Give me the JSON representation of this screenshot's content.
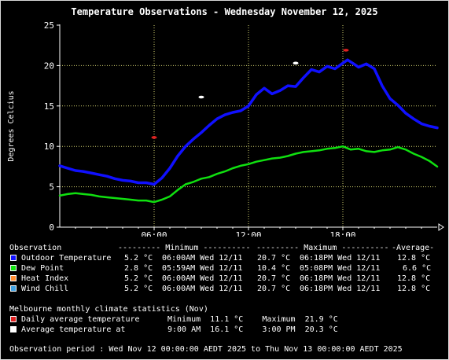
{
  "chart_data": {
    "type": "line",
    "title": "Temperature Observations - Wednesday November 12, 2025",
    "ylabel": "Degrees Celcius",
    "xlabel": "",
    "xlim_hours": [
      0,
      24
    ],
    "ylim": [
      0,
      25
    ],
    "yticks": [
      "0",
      "5",
      "10",
      "15",
      "20",
      "25"
    ],
    "xticks": [
      "06:00",
      "12:00",
      "18:00"
    ],
    "xtick_hours": [
      6,
      12,
      18
    ],
    "grid": true,
    "background": "#000000",
    "plot_background": "#000000",
    "grid_color": "#d0d070",
    "series": [
      {
        "name": "Outdoor Temperature",
        "color": "#1010ff",
        "x": [
          0,
          0.5,
          1,
          1.5,
          2,
          2.5,
          3,
          3.5,
          4,
          4.5,
          5,
          5.5,
          6,
          6.5,
          7,
          7.5,
          8,
          8.5,
          9,
          9.5,
          10,
          10.5,
          11,
          11.5,
          12,
          12.5,
          13,
          13.5,
          14,
          14.5,
          15,
          15.5,
          16,
          16.5,
          17,
          17.5,
          18,
          18.3,
          18.7,
          19,
          19.5,
          20,
          20.5,
          21,
          21.5,
          22,
          22.5,
          23,
          23.5,
          24
        ],
        "values": [
          7.6,
          7.3,
          7.0,
          6.9,
          6.7,
          6.5,
          6.3,
          6.0,
          5.8,
          5.7,
          5.5,
          5.5,
          5.3,
          6.1,
          7.3,
          8.8,
          10.0,
          10.9,
          11.7,
          12.6,
          13.4,
          13.9,
          14.2,
          14.4,
          15.0,
          16.4,
          17.2,
          16.5,
          16.9,
          17.5,
          17.4,
          18.5,
          19.5,
          19.2,
          19.9,
          19.6,
          20.3,
          20.7,
          20.2,
          19.8,
          20.2,
          19.6,
          17.5,
          15.9,
          15.1,
          14.1,
          13.4,
          12.8,
          12.5,
          12.3
        ]
      },
      {
        "name": "Dew Point",
        "color": "#10e010",
        "x": [
          0,
          0.5,
          1,
          1.5,
          2,
          2.5,
          3,
          3.5,
          4,
          4.5,
          5,
          5.5,
          6,
          6.5,
          7,
          7.5,
          8,
          8.5,
          9,
          9.5,
          10,
          10.5,
          11,
          11.5,
          12,
          12.5,
          13,
          13.5,
          14,
          14.5,
          15,
          15.5,
          16,
          16.5,
          17,
          17.5,
          18,
          18.5,
          19,
          19.5,
          20,
          20.5,
          21,
          21.5,
          22,
          22.5,
          23,
          23.5,
          24
        ],
        "values": [
          3.9,
          4.1,
          4.2,
          4.1,
          4.0,
          3.8,
          3.7,
          3.6,
          3.5,
          3.4,
          3.3,
          3.3,
          3.1,
          3.4,
          3.8,
          4.6,
          5.3,
          5.6,
          6.0,
          6.2,
          6.6,
          6.9,
          7.3,
          7.6,
          7.8,
          8.1,
          8.3,
          8.5,
          8.6,
          8.8,
          9.1,
          9.3,
          9.4,
          9.5,
          9.7,
          9.8,
          10.0,
          9.6,
          9.7,
          9.4,
          9.3,
          9.5,
          9.6,
          9.9,
          9.6,
          9.1,
          8.7,
          8.2,
          7.5
        ]
      }
    ],
    "climate_points": [
      {
        "name": "Daily average temperature minimum",
        "x": 6.0,
        "y": 11.1,
        "color": "#e02020"
      },
      {
        "name": "Daily average temperature maximum",
        "x": 18.2,
        "y": 21.9,
        "color": "#e02020"
      },
      {
        "name": "Average temperature at 9:00 AM",
        "x": 9.0,
        "y": 16.1,
        "color": "#ffffff"
      },
      {
        "name": "Average temperature at 3:00 PM",
        "x": 15.0,
        "y": 20.3,
        "color": "#ffffff"
      }
    ]
  },
  "legend": {
    "header": {
      "observation": "Observation",
      "minimum": "--------- Minimum ----------",
      "maximum": "--------- Maximum ----------",
      "average": "-Average-"
    },
    "rows": [
      {
        "label": "Outdoor Temperature",
        "color": "#1010ff",
        "min_val": "5.2 °C",
        "min_time": "06:00AM Wed 12/11",
        "max_val": "20.7 °C",
        "max_time": "06:18PM Wed 12/11",
        "avg": "12.8 °C"
      },
      {
        "label": "Dew Point",
        "color": "#10e010",
        "min_val": "2.8 °C",
        "min_time": "05:59AM Wed 12/11",
        "max_val": "10.4 °C",
        "max_time": "05:08PM Wed 12/11",
        "avg": "6.6 °C"
      },
      {
        "label": "Heat Index",
        "color": "#ff8c30",
        "min_val": "5.2 °C",
        "min_time": "06:00AM Wed 12/11",
        "max_val": "20.7 °C",
        "max_time": "06:18PM Wed 12/11",
        "avg": "12.8 °C"
      },
      {
        "label": "Wind Chill",
        "color": "#40a0e0",
        "min_val": "5.2 °C",
        "min_time": "06:00AM Wed 12/11",
        "max_val": "20.7 °C",
        "max_time": "06:18PM Wed 12/11",
        "avg": "12.8 °C"
      }
    ]
  },
  "climate": {
    "heading": "Melbourne monthly climate statistics (Nov)",
    "rows": [
      {
        "label": "Daily average temperature",
        "color": "#e02020",
        "text": "Minimum  11.1 °C    Maximum  21.9 °C"
      },
      {
        "label": "Average temperature at",
        "color": "#ffffff",
        "text": "9:00 AM  16.1 °C    3:00 PM  20.3 °C"
      }
    ]
  },
  "footer": {
    "period": "Observation period : Wed Nov 12 00:00:00 AEDT 2025 to Thu Nov 13 00:00:00 AEDT 2025"
  }
}
